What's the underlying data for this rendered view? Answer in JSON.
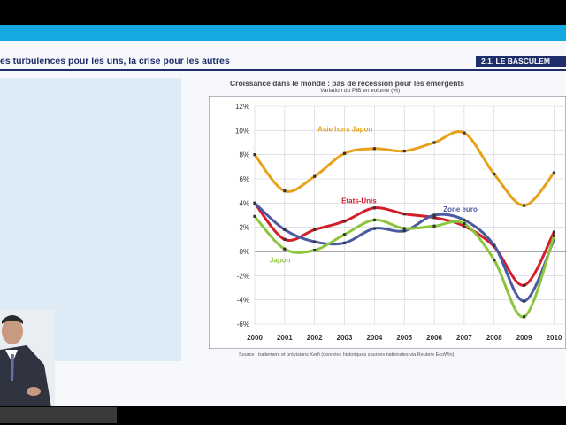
{
  "slide": {
    "title": "es turbulences pour les uns, la crise pour les autres",
    "section_badge": "2.1. LE BASCULEM"
  },
  "chart_data": {
    "type": "line",
    "title": "Croissance dans le monde : pas de récession pour les émergents",
    "subtitle": "Variation du PIB en volume (%)",
    "x": [
      2000,
      2001,
      2002,
      2003,
      2004,
      2005,
      2006,
      2007,
      2008,
      2009,
      2010
    ],
    "x_tick_labels": [
      "2000",
      "2001",
      "2002",
      "2003",
      "2004",
      "2005",
      "2006",
      "2007",
      "2008",
      "2009",
      "2010"
    ],
    "ylim": [
      -6,
      12
    ],
    "y_tick_labels": [
      "12%",
      "10%",
      "8%",
      "6%",
      "4%",
      "2%",
      "0%",
      "-2%",
      "-4%",
      "-6%"
    ],
    "grid": true,
    "series": [
      {
        "name": "Asie hors Japon",
        "color": "#e8a21a",
        "values": [
          8.0,
          5.0,
          6.2,
          8.1,
          8.5,
          8.3,
          9.0,
          9.8,
          6.4,
          3.8,
          6.5
        ]
      },
      {
        "name": "Etats-Unis",
        "color": "#d21f2a",
        "values": [
          4.0,
          1.0,
          1.8,
          2.5,
          3.6,
          3.1,
          2.8,
          2.1,
          0.4,
          -2.8,
          1.6
        ]
      },
      {
        "name": "Zone euro",
        "color": "#4a5aa0",
        "values": [
          4.0,
          1.8,
          0.8,
          0.7,
          1.9,
          1.7,
          3.0,
          2.6,
          0.5,
          -4.1,
          1.0
        ]
      },
      {
        "name": "Japon",
        "color": "#8cc63f",
        "values": [
          2.9,
          0.2,
          0.1,
          1.4,
          2.6,
          1.9,
          2.1,
          2.3,
          -0.7,
          -5.4,
          1.3
        ]
      }
    ],
    "source": "Source : traitement et prévisions Xerfi (données historiques sources nationales via Reuters EcoWin)"
  }
}
